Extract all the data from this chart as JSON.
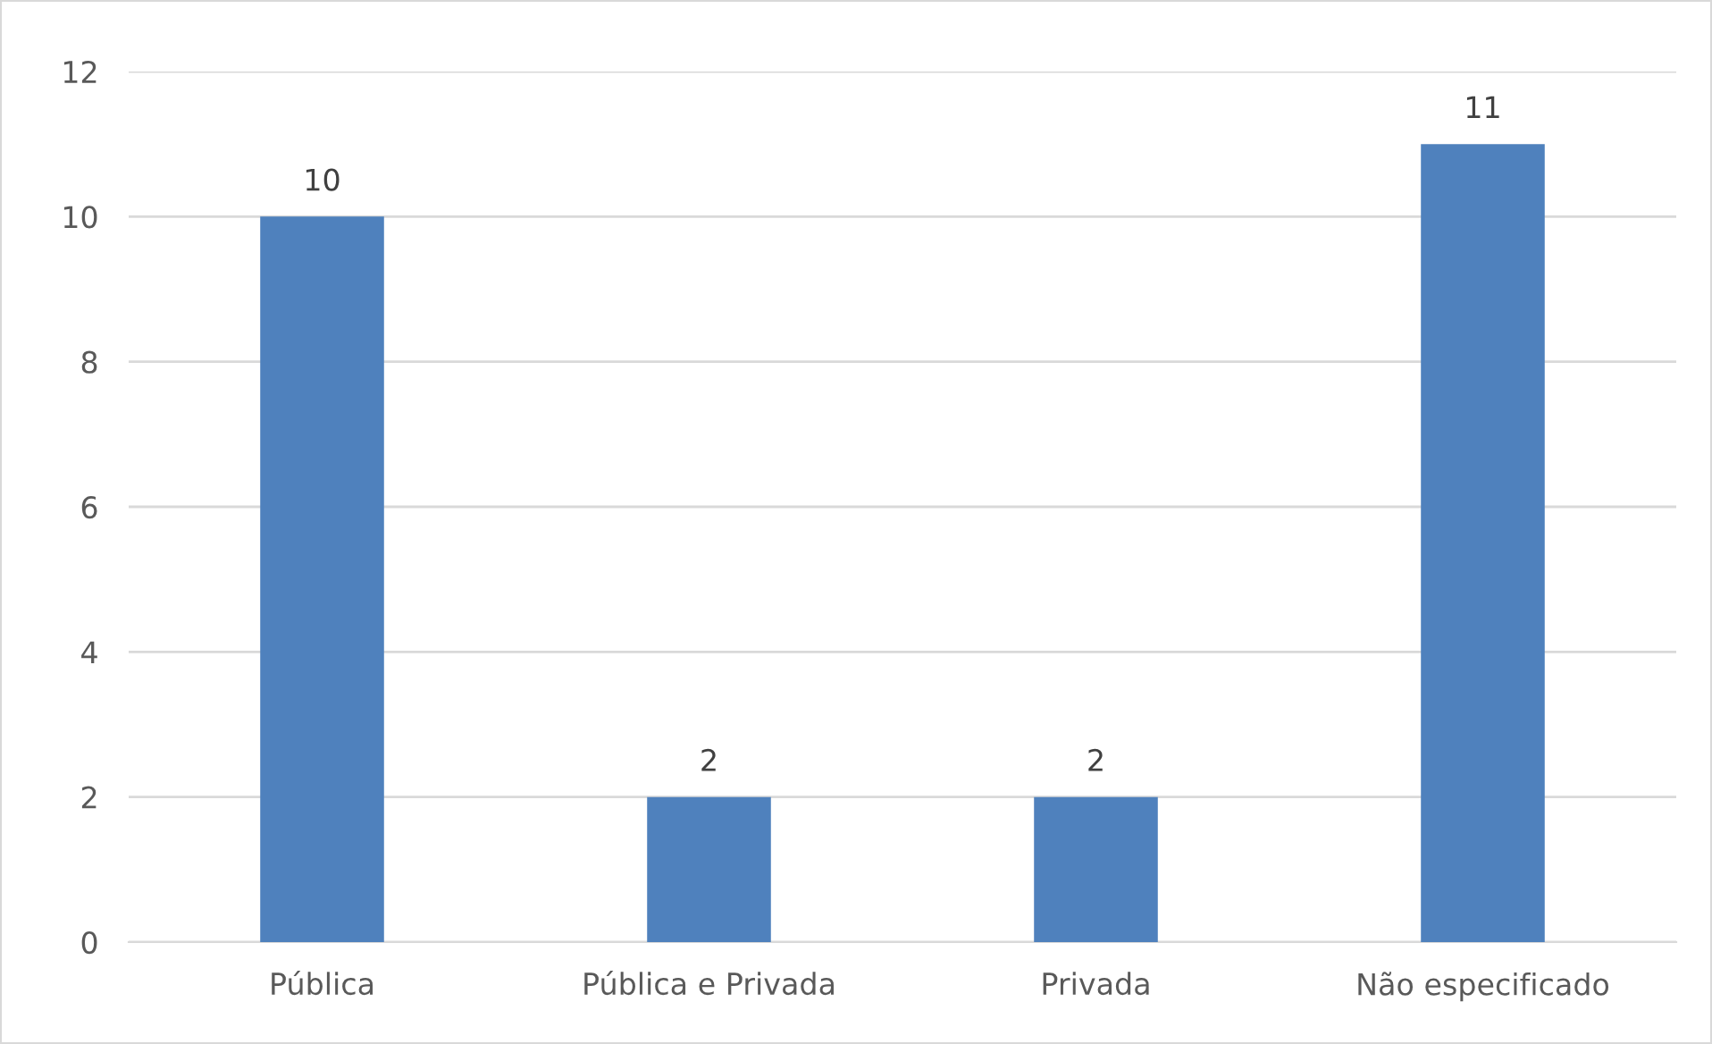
{
  "chart_data": {
    "type": "bar",
    "categories": [
      "Pública",
      "Pública e Privada",
      "Privada",
      "Não especificado"
    ],
    "values": [
      10,
      2,
      2,
      11
    ],
    "color": "#4f81bd",
    "ylim": [
      0,
      12
    ],
    "yticks": [
      0,
      2,
      4,
      6,
      8,
      10,
      12
    ],
    "grid": "y",
    "data_labels": true
  }
}
